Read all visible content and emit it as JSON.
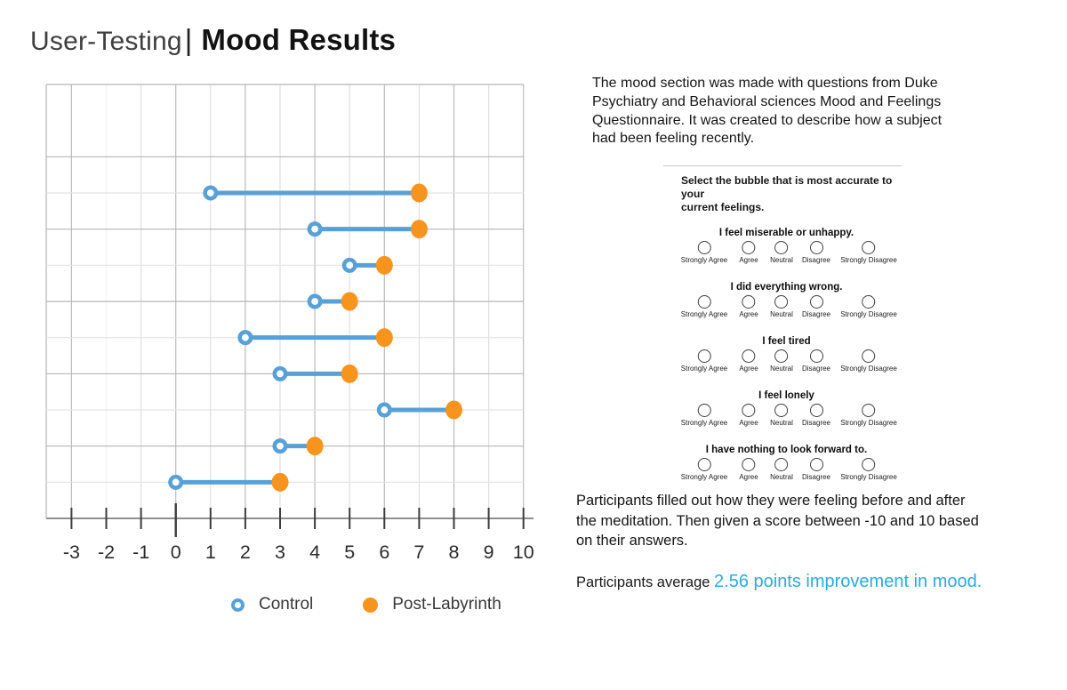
{
  "header": {
    "title_light": "User-Testing",
    "separator": "|",
    "title_bold": "Mood Results"
  },
  "chart_data": {
    "type": "dumbbell",
    "orientation": "horizontal",
    "title": "Mood Results",
    "grid": true,
    "legend_position": "bottom",
    "x_axis": {
      "min": -3,
      "max": 10,
      "tick_step": 1,
      "tick_labels": [
        "-3",
        "-2",
        "-1",
        "0",
        "1",
        "2",
        "3",
        "4",
        "5",
        "6",
        "7",
        "8",
        "9",
        "10"
      ]
    },
    "series": [
      {
        "name": "Control",
        "marker": "open-circle",
        "color": "#58A0D8",
        "values": [
          1,
          4,
          5,
          4,
          2,
          3,
          6,
          3,
          0
        ]
      },
      {
        "name": "Post-Labyrinth",
        "marker": "filled-circle",
        "color": "#F7941E",
        "values": [
          7,
          7,
          6,
          5,
          6,
          5,
          8,
          4,
          3
        ]
      }
    ],
    "average_improvement": 2.56
  },
  "legend": {
    "control_label": "Control",
    "post_label": "Post-Labyrinth"
  },
  "right_column": {
    "intro": "The mood section was made with questions from Duke\nPsychiatry and Behavioral sciences Mood and Feelings\nQuestionnaire. It was created to describe how a subject\nhad been feeling recently.",
    "questionnaire": {
      "instruction": "Select the bubble that is most accurate to your\ncurrent feelings.",
      "options": [
        "Strongly Agree",
        "Agree",
        "Neutral",
        "Disagree",
        "Strongly Disagree"
      ],
      "questions": [
        "I feel miserable or unhappy.",
        "I did everything wrong.",
        "I feel tired",
        "I feel lonely",
        "I have nothing to look forward to."
      ]
    },
    "scoring": "Participants filled out how they were feeling before and after\nthe meditation. Then given a score between -10 and 10 based\non their answers.",
    "average_prefix": "Participants average ",
    "average_highlight": "2.56 points improvement in mood.",
    "highlight_color": "#29ABE2"
  }
}
